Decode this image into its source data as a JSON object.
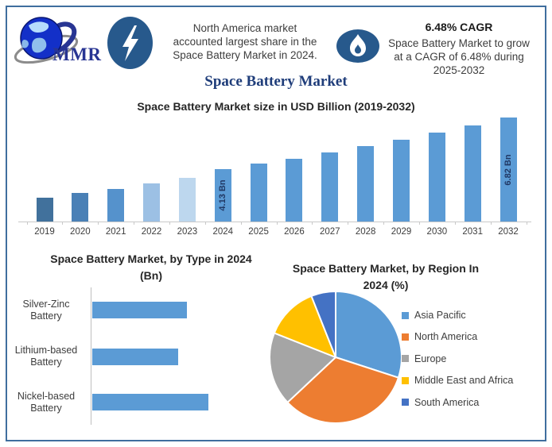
{
  "header": {
    "logo": {
      "text": "MMR",
      "globe_icon": "globe-icon",
      "orbit_icon": "orbit-swoosh-icon"
    },
    "left_icon": "lightning-bolt-icon",
    "right_icon": "flame-icon",
    "left_note_lines": [
      "North America market",
      "accounted largest share in the",
      "Space Battery Market in 2024."
    ],
    "cagr_title": "6.48% CAGR",
    "cagr_lines": [
      "Space Battery Market to grow",
      "at a CAGR of 6.48% during",
      "2025-2032"
    ],
    "main_title": "Space Battery Market"
  },
  "colors": {
    "frame_border": "#3f6e9e",
    "icon_circle": "#27598c",
    "title_navy": "#1f3d7a",
    "primary_bar_blue": "#5b9bd5",
    "axis_gray": "#c9c9c9"
  },
  "chart_data": [
    {
      "type": "bar",
      "title": "Space Battery Market size in USD Billion (2019-2032)",
      "categories": [
        "2019",
        "2020",
        "2021",
        "2022",
        "2023",
        "2024",
        "2025",
        "2026",
        "2027",
        "2028",
        "2029",
        "2030",
        "2031",
        "2032"
      ],
      "values": [
        2.65,
        2.87,
        3.1,
        3.38,
        3.68,
        4.13,
        4.4,
        4.68,
        4.99,
        5.31,
        5.65,
        6.02,
        6.41,
        6.82
      ],
      "unit": "USD Bn",
      "value_labels": {
        "2024": "4.13 Bn",
        "2032": "6.82 Bn"
      },
      "bar_colors": [
        "#41719c",
        "#4a80b6",
        "#5592cc",
        "#9cc0e4",
        "#bdd7ee",
        "#5b9bd5",
        "#5b9bd5",
        "#5b9bd5",
        "#5b9bd5",
        "#5b9bd5",
        "#5b9bd5",
        "#5b9bd5",
        "#5b9bd5",
        "#5b9bd5"
      ],
      "xlabel": "",
      "ylabel": "",
      "ylim": [
        0,
        7
      ],
      "grid": false,
      "legend": false
    },
    {
      "type": "bar",
      "orientation": "horizontal",
      "title_lines": [
        "Space Battery Market, by Type in 2024",
        "(Bn)"
      ],
      "categories": [
        "Silver-Zinc Battery",
        "Lithium-based Battery",
        "Nickel-based Battery"
      ],
      "category_lines": [
        [
          "Silver-Zinc",
          "Battery"
        ],
        [
          "Lithium-based",
          "Battery"
        ],
        [
          "Nickel-based",
          "Battery"
        ]
      ],
      "values": [
        1.4,
        1.27,
        1.72
      ],
      "unit": "Bn",
      "bar_color": "#5b9bd5",
      "grid": false,
      "legend": false
    },
    {
      "type": "pie",
      "title_lines": [
        "Space Battery Market, by Region In",
        "2024 (%)"
      ],
      "labels": [
        "Asia Pacific",
        "North America",
        "Europe",
        "Middle East and Africa",
        "South America"
      ],
      "values": [
        30,
        33,
        18,
        13,
        6
      ],
      "unit": "%",
      "colors": [
        "#5b9bd5",
        "#ed7d31",
        "#a5a5a5",
        "#ffc000",
        "#4472c4"
      ],
      "legend_position": "right",
      "start_angle": "12-o-clock-clockwise"
    }
  ]
}
